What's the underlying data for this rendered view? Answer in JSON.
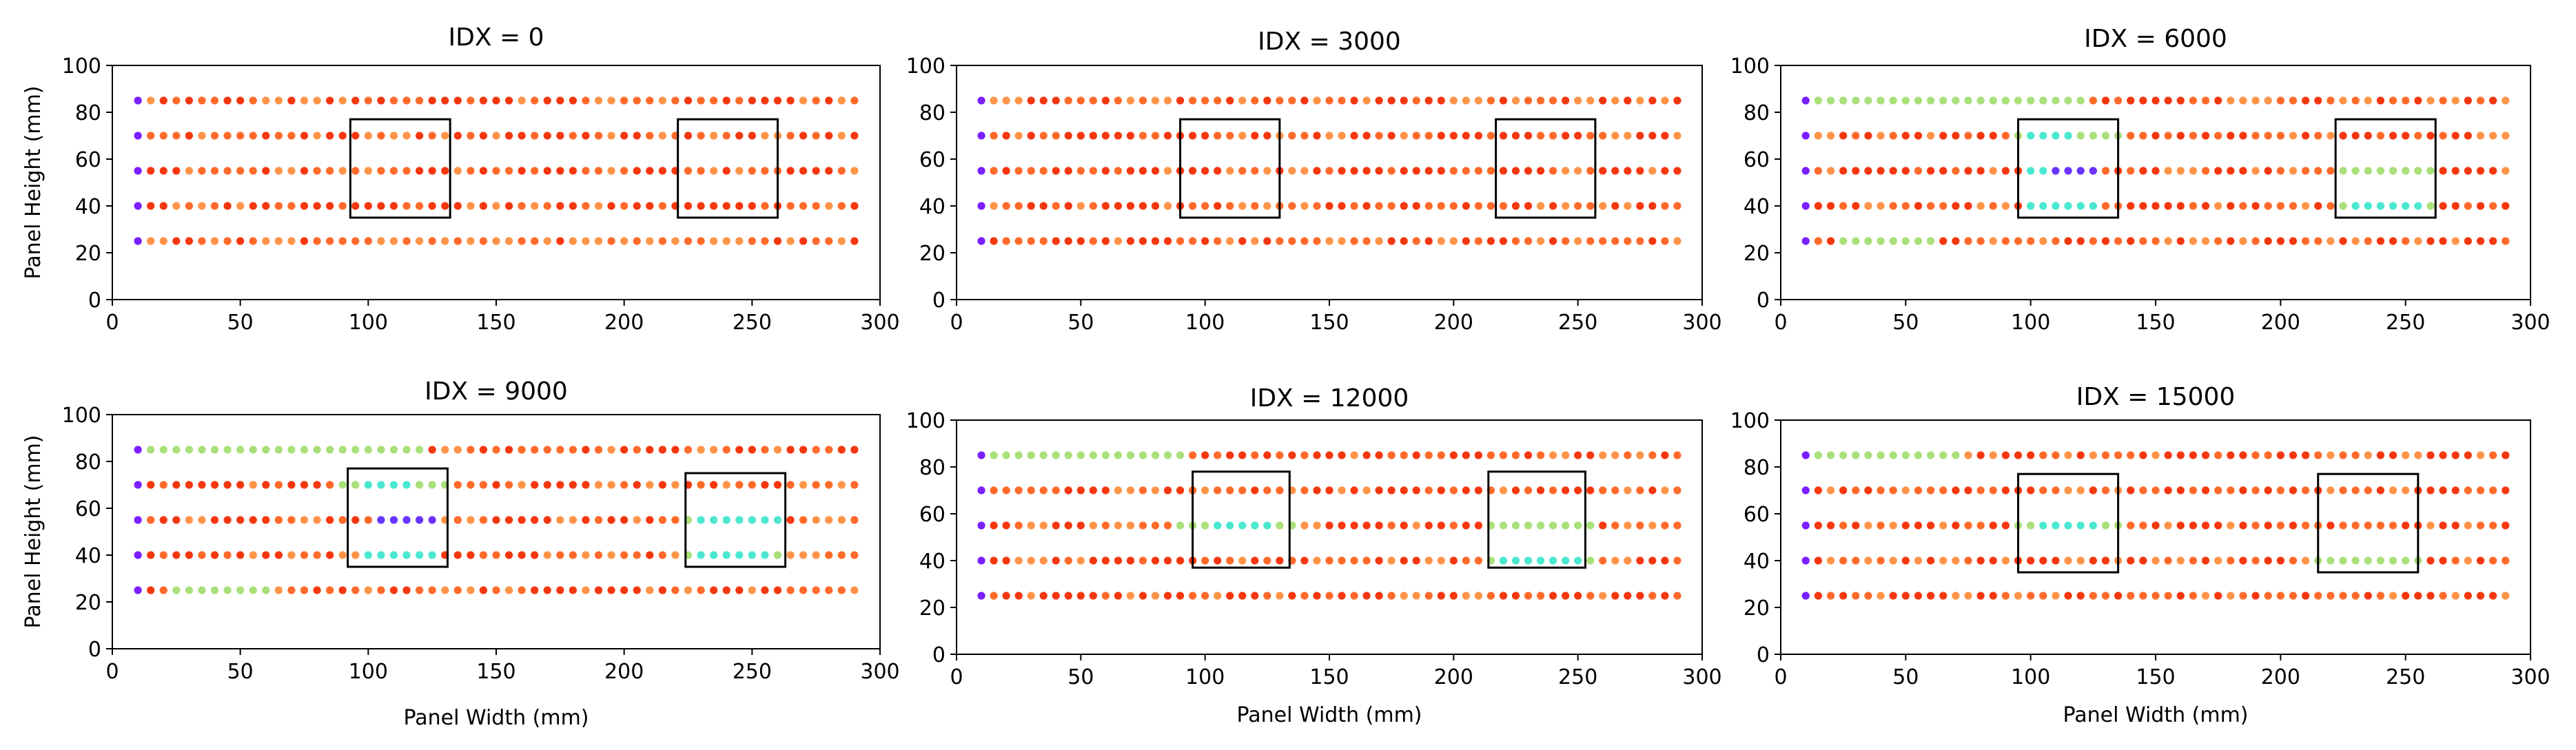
{
  "chart_data": {
    "type": "scatter",
    "ylabel": "Panel Height (mm)",
    "xlabel": "Panel Width (mm)",
    "xlim": [
      0,
      300
    ],
    "ylim": [
      0,
      100
    ],
    "x_ticks": [
      0,
      50,
      100,
      150,
      200,
      250,
      300
    ],
    "y_ticks": [
      0,
      20,
      40,
      60,
      80,
      100
    ],
    "sensor_rows_mm": [
      85,
      70,
      55,
      40,
      25
    ],
    "x_range_mm": [
      10,
      290
    ],
    "colormap": "rainbow (violet = low, red = high)",
    "panels": [
      {
        "title": "IDX = 0",
        "boxes": [
          {
            "x": [
              93,
              132
            ],
            "y": [
              35,
              77
            ]
          },
          {
            "x": [
              221,
              260
            ],
            "y": [
              35,
              77
            ]
          }
        ],
        "green_regions": [],
        "cyan_regions": [],
        "blue_regions": []
      },
      {
        "title": "IDX = 3000",
        "boxes": [
          {
            "x": [
              90,
              130
            ],
            "y": [
              35,
              77
            ]
          },
          {
            "x": [
              217,
              257
            ],
            "y": [
              35,
              77
            ]
          }
        ],
        "green_regions": [],
        "cyan_regions": [],
        "blue_regions": []
      },
      {
        "title": "IDX = 6000",
        "boxes": [
          {
            "x": [
              95,
              135
            ],
            "y": [
              35,
              77
            ]
          },
          {
            "x": [
              222,
              262
            ],
            "y": [
              35,
              77
            ]
          }
        ],
        "green_regions": [
          {
            "row": 85,
            "x": [
              10,
              120
            ]
          },
          {
            "row": 70,
            "x": [
              95,
              135
            ]
          },
          {
            "row": 55,
            "x": [
              225,
              260
            ]
          },
          {
            "row": 40,
            "x": [
              225,
              260
            ]
          },
          {
            "row": 25,
            "x": [
              25,
              60
            ]
          }
        ],
        "cyan_regions": [
          {
            "row": 55,
            "x": [
              100,
              110
            ]
          },
          {
            "row": 40,
            "x": [
              100,
              125
            ]
          },
          {
            "row": 70,
            "x": [
              100,
              115
            ]
          },
          {
            "row": 40,
            "x": [
              230,
              255
            ]
          }
        ],
        "blue_regions": [
          {
            "row": 55,
            "x": [
              108,
              128
            ]
          }
        ]
      },
      {
        "title": "IDX = 9000",
        "boxes": [
          {
            "x": [
              92,
              131
            ],
            "y": [
              35,
              77
            ]
          },
          {
            "x": [
              224,
              263
            ],
            "y": [
              35,
              75
            ]
          }
        ],
        "green_regions": [
          {
            "row": 85,
            "x": [
              10,
              120
            ]
          },
          {
            "row": 70,
            "x": [
              90,
              130
            ]
          },
          {
            "row": 55,
            "x": [
              225,
              260
            ]
          },
          {
            "row": 40,
            "x": [
              225,
              260
            ]
          },
          {
            "row": 25,
            "x": [
              25,
              60
            ]
          }
        ],
        "cyan_regions": [
          {
            "row": 40,
            "x": [
              100,
              125
            ]
          },
          {
            "row": 70,
            "x": [
              100,
              115
            ]
          },
          {
            "row": 55,
            "x": [
              230,
              260
            ]
          },
          {
            "row": 40,
            "x": [
              230,
              255
            ]
          }
        ],
        "blue_regions": [
          {
            "row": 55,
            "x": [
              105,
              128
            ]
          }
        ]
      },
      {
        "title": "IDX = 12000",
        "boxes": [
          {
            "x": [
              95,
              134
            ],
            "y": [
              37,
              78
            ]
          },
          {
            "x": [
              214,
              253
            ],
            "y": [
              37,
              78
            ]
          }
        ],
        "green_regions": [
          {
            "row": 85,
            "x": [
              10,
              90
            ]
          },
          {
            "row": 55,
            "x": [
              90,
              135
            ]
          },
          {
            "row": 55,
            "x": [
              215,
              255
            ]
          },
          {
            "row": 40,
            "x": [
              215,
              255
            ]
          }
        ],
        "cyan_regions": [
          {
            "row": 55,
            "x": [
              105,
              125
            ]
          },
          {
            "row": 40,
            "x": [
              220,
              250
            ]
          }
        ],
        "blue_regions": []
      },
      {
        "title": "IDX = 15000",
        "boxes": [
          {
            "x": [
              95,
              135
            ],
            "y": [
              35,
              77
            ]
          },
          {
            "x": [
              215,
              255
            ],
            "y": [
              35,
              77
            ]
          }
        ],
        "green_regions": [
          {
            "row": 85,
            "x": [
              10,
              70
            ]
          },
          {
            "row": 55,
            "x": [
              95,
              135
            ]
          },
          {
            "row": 40,
            "x": [
              215,
              255
            ]
          }
        ],
        "cyan_regions": [
          {
            "row": 55,
            "x": [
              105,
              125
            ]
          }
        ],
        "blue_regions": []
      }
    ]
  }
}
